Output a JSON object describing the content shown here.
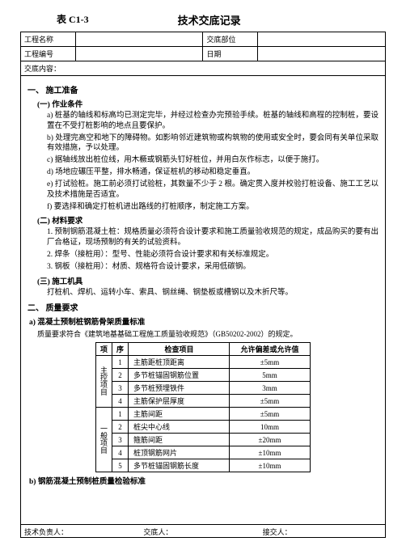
{
  "header": {
    "tableLabel": "表 C1-3",
    "title": "技术交底记录",
    "projectNameLabel": "工程名称",
    "projectName": "",
    "unitLabel": "交底部位",
    "unit": "",
    "projectNoLabel": "工程编号",
    "projectNo": "",
    "dateLabel": "日期",
    "date": "",
    "contentLabel": "交底内容："
  },
  "sec1": {
    "title": "一、 施工准备",
    "sub1": "(一) 作业条件",
    "items1": [
      "桩基的轴线和标高均已测定完毕，并经过检查办完预验手续。桩基的轴线和高程的控制桩，要设置在不受打桩影响的地点且要保护。",
      "处理完高空和地下的障碍物。如影响邻近建筑物或构筑物的使用或安全时，要会同有关单位采取有效措施，予以处理。",
      "据轴线放出桩位线，用木橛或钢筋头钉好桩位，并用白灰作标志，以便于施打。",
      "场地应碾压平整，排水畅通，保证桩机的移动和稳定垂直。",
      "打试验桩。施工前必须打试验桩，其数量不少于 2 根。确定贯入度并校验打桩设备、施工工艺以及技术措施是否适宜。",
      "要选择和确定打桩机进出路线的打桩顺序，制定施工方案。"
    ],
    "sub2": "(二) 材料要求",
    "items2": [
      "预制钢筋混凝土桩：规格质量必须符合设计要求和施工质量验收规范的规定，成品购买的要有出厂合格证，现场预制的有关的试验资料。",
      "焊条（接桩用）：型号、性能必须符合设计要求和有关标准规定。",
      "钢板（接桩用）：材质、规格符合设计要求，采用低碳钢。"
    ],
    "sub3": "(三) 施工机具",
    "line3": "打桩机、焊机、运转小车、索具、钢丝绳、钢垫板或槽钢以及木折尺等。"
  },
  "sec2": {
    "title": "二、 质量要求",
    "subA": "a)    混凝土预制桩钢筋骨架质量标准",
    "stdRef": "质量要求符合《建筑地基基础工程施工质量验收规范》（GB50202-2002）的规定。",
    "tableHeader": {
      "c1": "项",
      "c2": "序",
      "c3": "检查项目",
      "c4": "允许偏差或允许值"
    },
    "group1Label": "主控项目",
    "group2Label": "一般项目",
    "rows": [
      {
        "n": "1",
        "item": "主筋距桩顶距离",
        "tol": "±5mm"
      },
      {
        "n": "2",
        "item": "多节桩锚固钢筋位置",
        "tol": "5mm"
      },
      {
        "n": "3",
        "item": "多节桩预埋铁件",
        "tol": "3mm"
      },
      {
        "n": "4",
        "item": "主筋保护层厚度",
        "tol": "±5mm"
      },
      {
        "n": "1",
        "item": "主筋间距",
        "tol": "±5mm"
      },
      {
        "n": "2",
        "item": "桩尖中心线",
        "tol": "10mm"
      },
      {
        "n": "3",
        "item": "箍筋间距",
        "tol": "±20mm"
      },
      {
        "n": "4",
        "item": "桩顶钢筋网片",
        "tol": "±10mm"
      },
      {
        "n": "5",
        "item": "多节桩锚固钢筋长度",
        "tol": "±10mm"
      }
    ],
    "subB": "b)    钢筋混凝土预制桩质量检验标准"
  },
  "footer": {
    "approver": "技术负责人：",
    "disclose": "交底人：",
    "receive": "接交人："
  }
}
